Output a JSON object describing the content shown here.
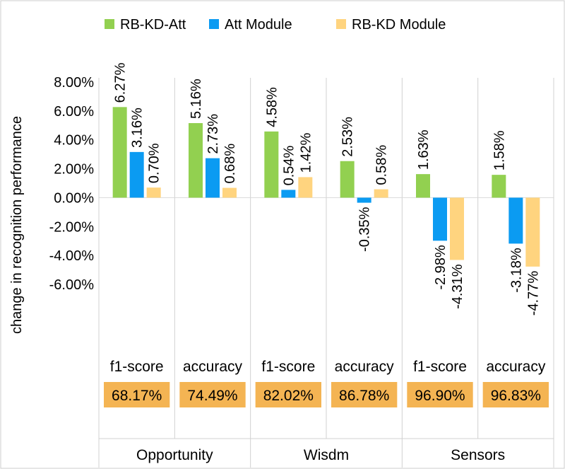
{
  "chart_data": {
    "type": "bar",
    "ylabel": "change in recognition performance",
    "ylim": [
      -0.06,
      0.08
    ],
    "yticks": [
      "8.00%",
      "6.00%",
      "4.00%",
      "2.00%",
      "0.00%",
      "-2.00%",
      "-4.00%",
      "-6.00%"
    ],
    "ytick_values": [
      0.08,
      0.06,
      0.04,
      0.02,
      0.0,
      -0.02,
      -0.04,
      -0.06
    ],
    "legend_position": "top",
    "categories": [
      "f1-score",
      "accuracy",
      "f1-score",
      "accuracy",
      "f1-score",
      "accuracy"
    ],
    "baselines": [
      "68.17%",
      "74.49%",
      "82.02%",
      "86.78%",
      "96.90%",
      "96.83%"
    ],
    "groups": [
      "Opportunity",
      "Wisdm",
      "Sensors"
    ],
    "series": [
      {
        "name": "RB-KD-Att",
        "color": "#92d050",
        "values": [
          0.0627,
          0.0516,
          0.0458,
          0.0253,
          0.0163,
          0.0158
        ],
        "labels": [
          "6.27%",
          "5.16%",
          "4.58%",
          "2.53%",
          "1.63%",
          "1.58%"
        ]
      },
      {
        "name": "Att Module",
        "color": "#0b9bf2",
        "values": [
          0.0316,
          0.0273,
          0.0054,
          -0.0035,
          -0.0298,
          -0.0318
        ],
        "labels": [
          "3.16%",
          "2.73%",
          "0.54%",
          "-0.35%",
          "-2.98%",
          "-3.18%"
        ]
      },
      {
        "name": "RB-KD Module",
        "color": "#ffd47f",
        "values": [
          0.007,
          0.0068,
          0.0142,
          0.0058,
          -0.0431,
          -0.0477
        ],
        "labels": [
          "0.70%",
          "0.68%",
          "1.42%",
          "0.58%",
          "-4.31%",
          "-4.77%"
        ]
      }
    ],
    "baseline_box_color": "#f4b453",
    "grid": false
  }
}
